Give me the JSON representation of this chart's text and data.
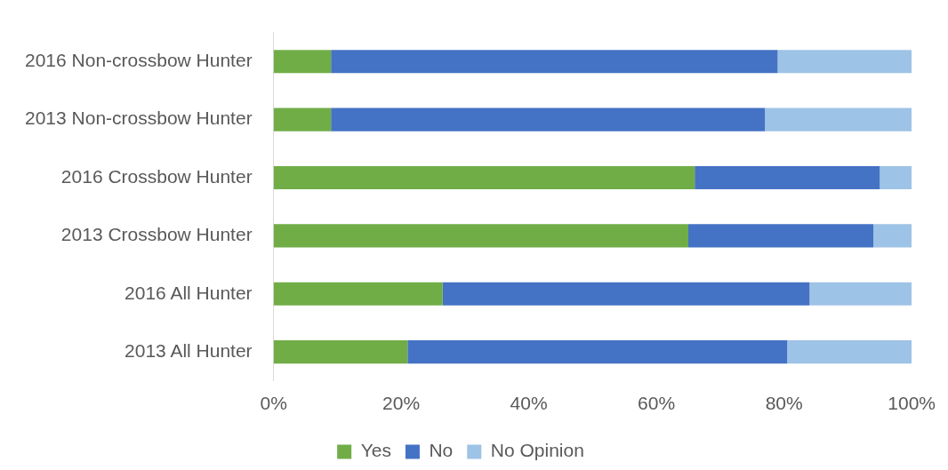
{
  "chart_data": {
    "type": "bar",
    "orientation": "horizontal",
    "stacked": true,
    "categories": [
      "2016 Non-crossbow Hunter",
      "2013 Non-crossbow Hunter",
      "2016 Crossbow Hunter",
      "2013 Crossbow Hunter",
      "2016 All Hunter",
      "2013 All Hunter"
    ],
    "series": [
      {
        "name": "Yes",
        "color": "#70ad47",
        "values": [
          9,
          9,
          66,
          65,
          26.5,
          21
        ]
      },
      {
        "name": "No",
        "color": "#4472c4",
        "values": [
          70,
          68,
          29,
          29,
          57.5,
          59.5
        ]
      },
      {
        "name": "No Opinion",
        "color": "#9dc3e6",
        "values": [
          21,
          23,
          5,
          6,
          16,
          19.5
        ]
      }
    ],
    "xlim": [
      0,
      100
    ],
    "xticks": [
      {
        "value": 0,
        "label": "0%"
      },
      {
        "value": 20,
        "label": "20%"
      },
      {
        "value": 40,
        "label": "40%"
      },
      {
        "value": 60,
        "label": "60%"
      },
      {
        "value": 80,
        "label": "80%"
      },
      {
        "value": 100,
        "label": "100%"
      }
    ],
    "grid": false,
    "legend": "bottom"
  }
}
